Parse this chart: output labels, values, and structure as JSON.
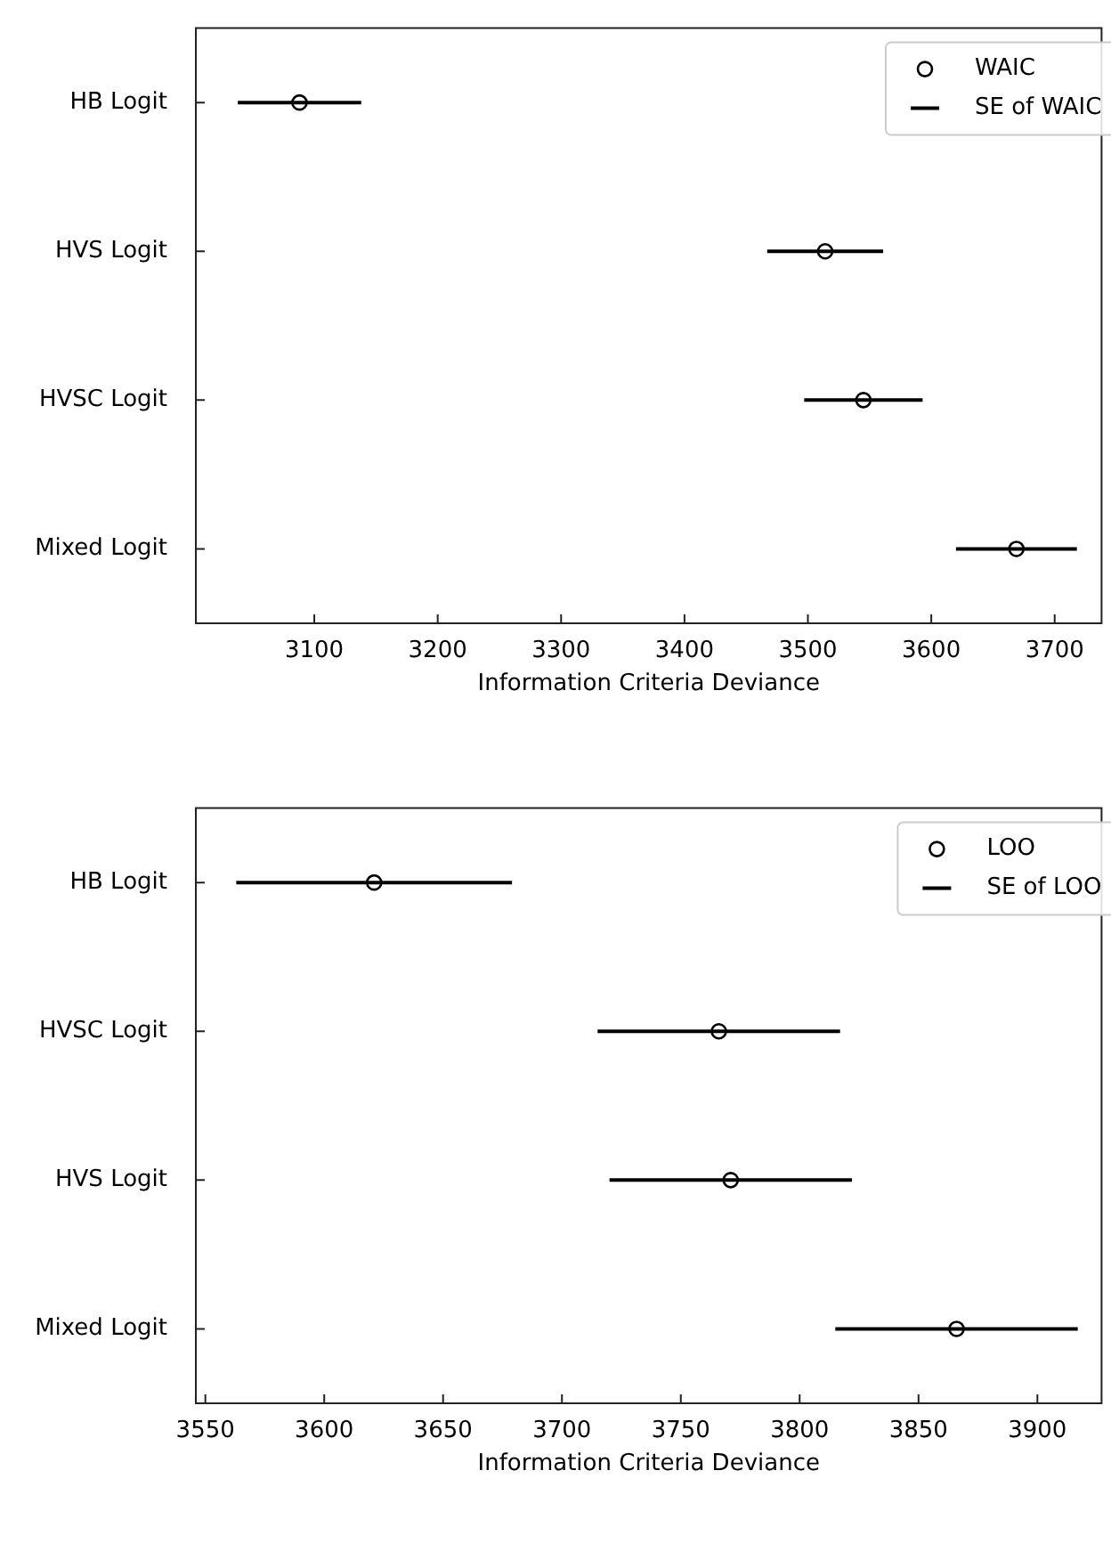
{
  "chart_data": [
    {
      "type": "scatter",
      "orientation": "horizontal",
      "categories": [
        "HB Logit",
        "HVS Logit",
        "HVSC Logit",
        "Mixed Logit"
      ],
      "xlabel": "Information Criteria Deviance",
      "xlim": [
        3004,
        3738
      ],
      "xticks": [
        3100,
        3200,
        3300,
        3400,
        3500,
        3600,
        3700
      ],
      "marker": "circle",
      "legend": "top right",
      "grid": false,
      "annotations": [
        "SE of WAIC"
      ],
      "series": [
        {
          "name": "WAIC",
          "color": "#000000",
          "values": [
            3088,
            3514,
            3545,
            3669
          ],
          "errors": [
            50,
            47,
            48,
            49
          ]
        }
      ]
    },
    {
      "type": "scatter",
      "orientation": "horizontal",
      "categories": [
        "HB Logit",
        "HVSC Logit",
        "HVS Logit",
        "Mixed Logit"
      ],
      "xlabel": "Information Criteria Deviance",
      "xlim": [
        3546,
        3927
      ],
      "xticks": [
        3550,
        3600,
        3650,
        3700,
        3750,
        3800,
        3850,
        3900
      ],
      "marker": "circle",
      "legend": "top right",
      "grid": false,
      "annotations": [
        "SE of LOO"
      ],
      "series": [
        {
          "name": "LOO",
          "color": "#000000",
          "values": [
            3621,
            3766,
            3771,
            3866
          ],
          "errors": [
            58,
            51,
            51,
            51
          ]
        }
      ]
    }
  ]
}
